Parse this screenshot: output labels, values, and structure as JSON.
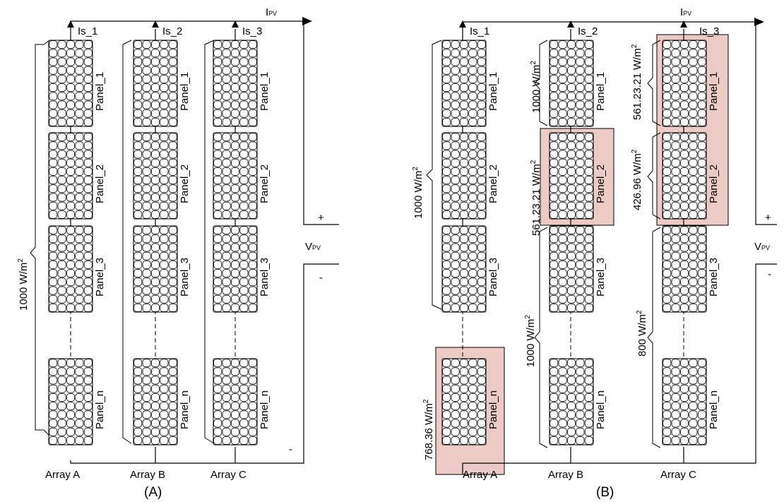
{
  "diagrams": [
    {
      "caption": "(A)",
      "current_label": "I",
      "current_label_sub": "PV",
      "voltage_label": "V",
      "voltage_label_sub": "PV",
      "plus": "+",
      "minus": "-",
      "string_currents": [
        "Is_1",
        "Is_2",
        "Is_3"
      ],
      "arrays": [
        "Array A",
        "Array B",
        "Array C"
      ],
      "panels": [
        "Panel_1",
        "Panel_2",
        "Panel_3",
        "Panel_n"
      ],
      "irradiance": {
        "text": "1000 W/m",
        "exp": "2"
      }
    },
    {
      "caption": "(B)",
      "current_label": "I",
      "current_label_sub": "PV",
      "voltage_label": "V",
      "voltage_label_sub": "PV",
      "plus": "+",
      "minus": "-",
      "string_currents": [
        "Is_1",
        "Is_2",
        "Is_3"
      ],
      "arrays": [
        "Array A",
        "Array B",
        "Array C"
      ],
      "panels": [
        "Panel_1",
        "Panel_2",
        "Panel_3",
        "Panel_n"
      ],
      "irradiance": {
        "a_top": {
          "text": "1000 W/m",
          "exp": "2"
        },
        "a_n": {
          "text": "768.36 W/m",
          "exp": "2"
        },
        "b_1": {
          "text": "1000 W/m",
          "exp": "2"
        },
        "b_2": {
          "text": "561.23.21 W/m",
          "exp": "2"
        },
        "b_3n": {
          "text": "1000 W/m",
          "exp": "2"
        },
        "c_1": {
          "text": "561.23.21 W/m",
          "exp": "2"
        },
        "c_2": {
          "text": "426.96 W/m",
          "exp": "2"
        },
        "c_3n": {
          "text": "800 W/m",
          "exp": "2"
        }
      },
      "shaded_panels": [
        "Array A / Panel_n",
        "Array B / Panel_2",
        "Array C / Panel_1",
        "Array C / Panel_2"
      ]
    }
  ]
}
